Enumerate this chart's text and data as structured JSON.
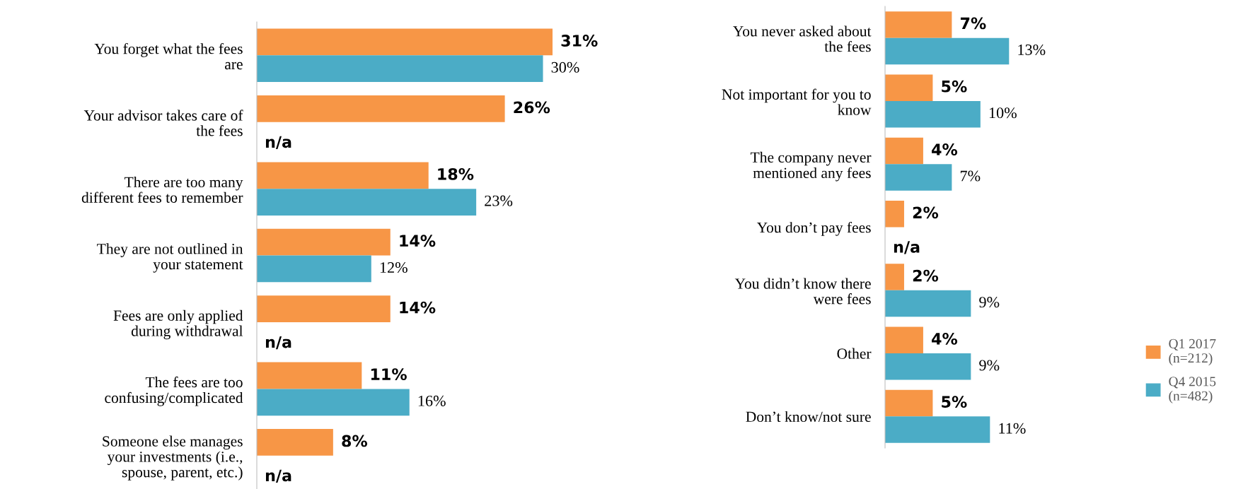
{
  "chart_data": [
    {
      "type": "bar",
      "orientation": "horizontal",
      "legend": false,
      "grid": false,
      "categories": [
        "You forget what the fees\nare",
        "Your advisor takes care of\nthe fees",
        "There are too many\ndifferent fees to remember",
        "They are not outlined in\nyour statement",
        "Fees are only applied\nduring withdrawal",
        "The fees are too\nconfusing/complicated",
        "Someone else manages\nyour investments (i.e.,\nspouse, parent, etc.)"
      ],
      "series": [
        {
          "color": "#f79646",
          "values": [
            31,
            26,
            18,
            14,
            14,
            11,
            8
          ],
          "value_labels": [
            "31%",
            "26%",
            "18%",
            "14%",
            "14%",
            "11%",
            "8%"
          ]
        },
        {
          "color": "#4bacc6",
          "values": [
            30,
            null,
            23,
            12,
            null,
            16,
            null
          ],
          "value_labels": [
            "30%",
            "n/a",
            "23%",
            "12%",
            "n/a",
            "16%",
            "n/a"
          ]
        }
      ]
    },
    {
      "type": "bar",
      "orientation": "horizontal",
      "legend": "bottom right",
      "grid": false,
      "categories": [
        "You never asked about\nthe fees",
        "Not important for you to\nknow",
        "The company never\nmentioned any fees",
        "You don’t pay fees",
        "You didn’t know there\nwere fees",
        "Other",
        "Don’t know/not sure"
      ],
      "series": [
        {
          "name": "Q1 2017\n(n=212)",
          "color": "#f79646",
          "values": [
            7,
            5,
            4,
            2,
            2,
            4,
            5
          ],
          "value_labels": [
            "7%",
            "5%",
            "4%",
            "2%",
            "2%",
            "4%",
            "5%"
          ]
        },
        {
          "name": "Q4 2015\n(n=482)",
          "color": "#4bacc6",
          "values": [
            13,
            10,
            7,
            null,
            9,
            9,
            11
          ],
          "value_labels": [
            "13%",
            "10%",
            "7%",
            "n/a",
            "9%",
            "9%",
            "11%"
          ]
        }
      ]
    }
  ]
}
